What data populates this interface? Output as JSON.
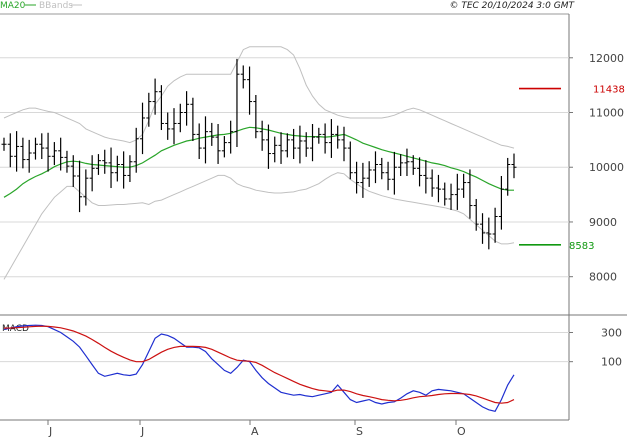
{
  "header": {
    "left_ma_label": "MA20",
    "left_bbands_label": "BBands",
    "right_credit": "© TEC 20/10/2024 3:0 GMT"
  },
  "macd_panel": {
    "label": "MACD"
  },
  "x_axis": {
    "month_labels": [
      "J",
      "J",
      "A",
      "S",
      "O"
    ]
  },
  "colors": {
    "ma": "#2aa52a",
    "bbands": "#c0c0c0",
    "price": "#000000",
    "grid": "#d8d8d8",
    "resistance": "#cc0000",
    "support": "#119911",
    "macd": "#1f2fd0",
    "signal": "#cc1111",
    "text": "#444444"
  },
  "chart_data": [
    {
      "type": "ohlc",
      "panel": "price",
      "y_tick_labels": [
        "12000",
        "11000",
        "10000",
        "9000",
        "8000"
      ],
      "y_ticks": [
        12000,
        11000,
        10000,
        9000,
        8000
      ],
      "ylim": [
        7300,
        12800
      ],
      "indicators": [
        "MA20",
        "BBands"
      ],
      "annotations": [
        {
          "label": "11438",
          "value": 11438,
          "color": "#cc0000"
        },
        {
          "label": "8583",
          "value": 8583,
          "color": "#119911"
        }
      ],
      "close": [
        10420,
        10200,
        10380,
        10140,
        10260,
        10420,
        10350,
        10200,
        10300,
        10180,
        10020,
        9840,
        9460,
        9800,
        9980,
        10120,
        10080,
        9900,
        10050,
        9850,
        10100,
        10520,
        10900,
        11200,
        11380,
        10800,
        10700,
        10800,
        11000,
        11150,
        10600,
        10350,
        10650,
        10550,
        10300,
        10450,
        10650,
        11700,
        11600,
        11200,
        10650,
        10500,
        10250,
        10400,
        10300,
        10500,
        10350,
        10480,
        10350,
        10550,
        10600,
        10450,
        10600,
        10500,
        10350,
        9900,
        9720,
        9800,
        9950,
        10050,
        9900,
        9780,
        10000,
        10080,
        10100,
        9980,
        9850,
        9800,
        9620,
        9600,
        9420,
        9500,
        9600,
        9720,
        9300,
        8960,
        8800,
        8780,
        9100,
        9600,
        10050,
        10000
      ],
      "ma20": [
        9450,
        9520,
        9600,
        9700,
        9770,
        9830,
        9880,
        9940,
        10010,
        10060,
        10100,
        10110,
        10100,
        10070,
        10050,
        10040,
        10030,
        10020,
        10010,
        10000,
        10000,
        10030,
        10080,
        10150,
        10220,
        10300,
        10350,
        10400,
        10440,
        10480,
        10500,
        10530,
        10550,
        10570,
        10590,
        10600,
        10620,
        10660,
        10700,
        10730,
        10720,
        10700,
        10680,
        10650,
        10620,
        10600,
        10580,
        10570,
        10560,
        10560,
        10560,
        10550,
        10560,
        10580,
        10600,
        10550,
        10500,
        10440,
        10400,
        10360,
        10320,
        10290,
        10260,
        10230,
        10200,
        10170,
        10140,
        10110,
        10080,
        10060,
        10030,
        9990,
        9960,
        9920,
        9870,
        9820,
        9760,
        9700,
        9650,
        9600,
        9580,
        9580
      ],
      "bb_upper": [
        10900,
        10950,
        11000,
        11050,
        11080,
        11080,
        11050,
        11020,
        11000,
        10950,
        10900,
        10850,
        10800,
        10700,
        10650,
        10600,
        10550,
        10520,
        10500,
        10480,
        10450,
        10500,
        10600,
        10850,
        11150,
        11300,
        11480,
        11580,
        11650,
        11700,
        11700,
        11700,
        11700,
        11700,
        11700,
        11700,
        11700,
        11920,
        12150,
        12200,
        12200,
        12200,
        12200,
        12200,
        12200,
        12150,
        12050,
        11800,
        11500,
        11300,
        11150,
        11050,
        11000,
        10950,
        10920,
        10900,
        10900,
        10900,
        10900,
        10900,
        10900,
        10920,
        10950,
        11000,
        11050,
        11080,
        11050,
        11000,
        10950,
        10900,
        10850,
        10800,
        10750,
        10700,
        10650,
        10600,
        10550,
        10500,
        10450,
        10400,
        10380,
        10350
      ],
      "bb_lower": [
        7950,
        8150,
        8350,
        8550,
        8750,
        8950,
        9150,
        9300,
        9450,
        9550,
        9650,
        9650,
        9550,
        9450,
        9350,
        9300,
        9300,
        9310,
        9320,
        9320,
        9330,
        9340,
        9350,
        9320,
        9380,
        9400,
        9450,
        9500,
        9550,
        9600,
        9650,
        9700,
        9750,
        9800,
        9850,
        9850,
        9800,
        9700,
        9650,
        9620,
        9580,
        9560,
        9540,
        9530,
        9530,
        9540,
        9550,
        9580,
        9600,
        9650,
        9700,
        9780,
        9850,
        9900,
        9880,
        9780,
        9700,
        9620,
        9560,
        9520,
        9480,
        9450,
        9420,
        9400,
        9380,
        9360,
        9340,
        9320,
        9300,
        9280,
        9260,
        9230,
        9200,
        9150,
        9050,
        8950,
        8850,
        8750,
        8650,
        8600,
        8600,
        8620
      ]
    },
    {
      "type": "line",
      "panel": "macd",
      "y_tick_labels": [
        "300",
        "100"
      ],
      "y_ticks": [
        300,
        100
      ],
      "ylim": [
        -300,
        420
      ],
      "series": [
        {
          "name": "MACD",
          "color": "#1f2fd0",
          "values": [
            320,
            330,
            340,
            345,
            348,
            350,
            348,
            340,
            320,
            300,
            270,
            240,
            200,
            140,
            80,
            20,
            0,
            10,
            20,
            10,
            5,
            15,
            80,
            170,
            260,
            290,
            280,
            260,
            230,
            200,
            200,
            195,
            170,
            120,
            80,
            40,
            20,
            60,
            110,
            100,
            40,
            -10,
            -50,
            -80,
            -110,
            -120,
            -130,
            -125,
            -135,
            -140,
            -130,
            -120,
            -110,
            -60,
            -110,
            -160,
            -180,
            -170,
            -160,
            -180,
            -190,
            -180,
            -175,
            -150,
            -120,
            -100,
            -110,
            -130,
            -100,
            -90,
            -95,
            -100,
            -110,
            -120,
            -150,
            -180,
            -210,
            -230,
            -240,
            -160,
            -60,
            10
          ]
        },
        {
          "name": "Signal",
          "color": "#cc1111",
          "values": [
            330,
            331,
            333,
            336,
            339,
            342,
            343,
            342,
            338,
            332,
            322,
            310,
            294,
            275,
            252,
            226,
            198,
            172,
            150,
            130,
            112,
            100,
            100,
            115,
            140,
            165,
            185,
            198,
            205,
            205,
            205,
            203,
            198,
            185,
            165,
            145,
            125,
            110,
            105,
            103,
            95,
            75,
            50,
            25,
            5,
            -15,
            -35,
            -55,
            -70,
            -85,
            -95,
            -100,
            -105,
            -95,
            -95,
            -105,
            -120,
            -132,
            -140,
            -150,
            -160,
            -165,
            -168,
            -165,
            -158,
            -148,
            -140,
            -137,
            -132,
            -125,
            -120,
            -118,
            -118,
            -120,
            -125,
            -135,
            -150,
            -165,
            -180,
            -185,
            -180,
            -160
          ]
        }
      ]
    }
  ]
}
